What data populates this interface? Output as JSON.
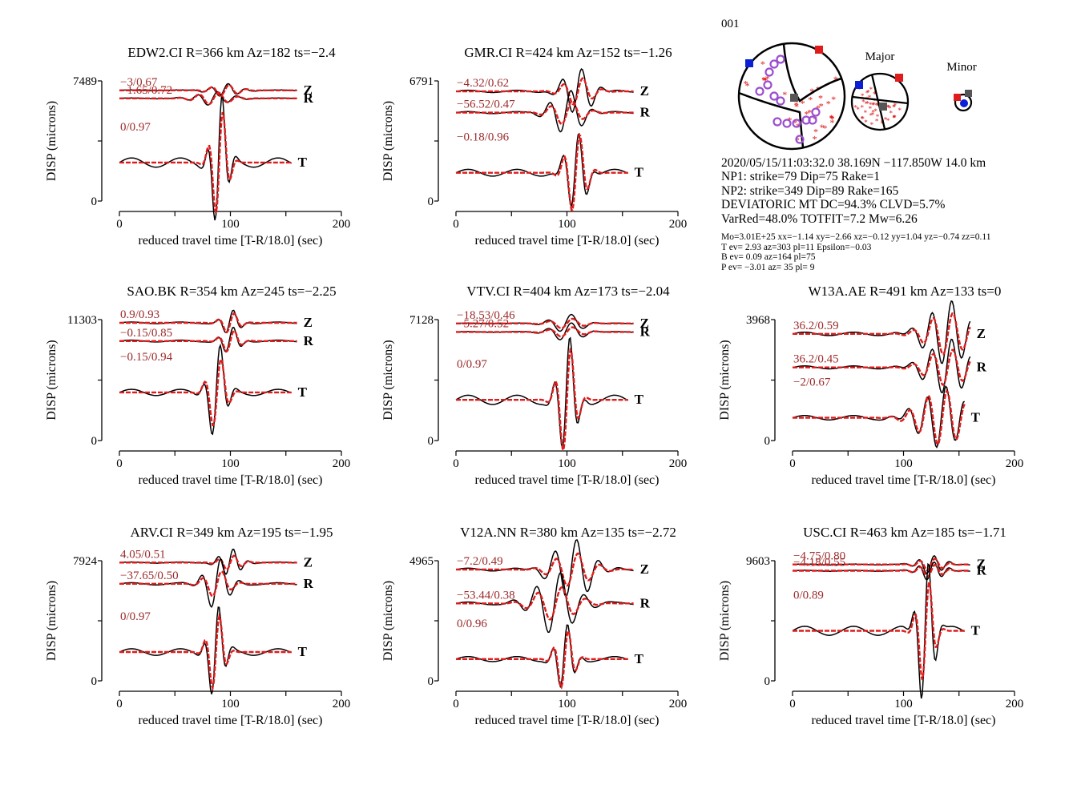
{
  "event_id": "001",
  "event_info": {
    "origin": "2020/05/15/11:03:32.0 38.169N −117.850W 14.0 km",
    "np1": "NP1: strike=79 Dip=75 Rake=1",
    "np2": "NP2: strike=349 Dip=89 Rake=165",
    "deviatoric": "DEVIATORIC MT DC=94.3% CLVD=5.7%",
    "varred": "VarRed=48.0% TOTFIT=7.2 Mw=6.26",
    "mo": "Mo=3.01E+25 xx=−1.14 xy=−2.66 xz=−0.12 yy=1.04 yz=−0.74 zz=0.11",
    "tev": "T ev=  2.93 az=303 pl=11 Epsilon=−0.03",
    "bev": "B ev=  0.09 az=164 pl=75",
    "pev": "P ev= −3.01 az= 35 pl= 9"
  },
  "focal_labels": {
    "major": "Major",
    "minor": "Minor"
  },
  "colors": {
    "observed": "#000000",
    "synthetic": "#e01b1b",
    "label": "#9c2a2a",
    "pick": "#9b4fd0"
  },
  "chart_data": [
    {
      "type": "line",
      "title": "EDW2.CI R=366 km Az=182 ts=−2.4",
      "xlabel": "reduced travel time [T-R/18.0] (sec)",
      "ylabel": "DISP (microns)",
      "xlim": [
        0,
        200
      ],
      "xticks": [
        "0",
        "100",
        "200"
      ],
      "ylim": [
        0,
        7489
      ],
      "ytick_labels": [
        "0",
        "7489"
      ],
      "series": [
        {
          "name": "Z",
          "baseline": 6900,
          "label": "−3/0.67",
          "amp": 350,
          "center": 95,
          "width": 16,
          "period": 16,
          "obs_ratio": 1.15
        },
        {
          "name": "R",
          "baseline": 6400,
          "label": "−1.65/0.72",
          "amp": 380,
          "center": 85,
          "width": 20,
          "period": 18,
          "obs_ratio": 1.1
        },
        {
          "name": "T",
          "baseline": 2400,
          "label": "0/0.97",
          "amp": 3600,
          "center": 90,
          "width": 9,
          "period": 14,
          "obs_ratio": 1.2
        }
      ]
    },
    {
      "type": "line",
      "title": "GMR.CI R=424 km Az=152 ts=−1.26",
      "xlabel": "reduced travel time [T-R/18.0] (sec)",
      "ylabel": "DISP (microns)",
      "xlim": [
        0,
        200
      ],
      "xticks": [
        "0",
        "100",
        "200"
      ],
      "ylim": [
        0,
        6791
      ],
      "ytick_labels": [
        "0",
        "6791"
      ],
      "series": [
        {
          "name": "Z",
          "baseline": 6200,
          "label": "−4.32/0.62",
          "amp": 800,
          "center": 110,
          "width": 16,
          "period": 18,
          "obs_ratio": 1.7
        },
        {
          "name": "R",
          "baseline": 5000,
          "label": "−56.52/0.47",
          "amp": 700,
          "center": 100,
          "width": 18,
          "period": 20,
          "obs_ratio": 1.8
        },
        {
          "name": "T",
          "baseline": 1600,
          "label": "−0.18/0.96",
          "amp": 2400,
          "center": 108,
          "width": 11,
          "period": 15,
          "obs_ratio": 1.0
        }
      ]
    },
    {
      "type": "line",
      "title": "SAO.BK R=354 km Az=245 ts=−2.25",
      "xlabel": "reduced travel time [T-R/18.0] (sec)",
      "ylabel": "DISP (microns)",
      "xlim": [
        0,
        200
      ],
      "xticks": [
        "0",
        "100",
        "200"
      ],
      "ylim": [
        0,
        11303
      ],
      "ytick_labels": [
        "0",
        "11303"
      ],
      "series": [
        {
          "name": "Z",
          "baseline": 11000,
          "label": "0.9/0.93",
          "amp": 1000,
          "center": 100,
          "width": 10,
          "period": 15,
          "obs_ratio": 1.2
        },
        {
          "name": "R",
          "baseline": 9300,
          "label": "−0.15/0.85",
          "amp": 1100,
          "center": 100,
          "width": 10,
          "period": 15,
          "obs_ratio": 1.2
        },
        {
          "name": "T",
          "baseline": 4500,
          "label": "−0.15/0.94",
          "amp": 3600,
          "center": 88,
          "width": 10,
          "period": 16,
          "obs_ratio": 1.3
        }
      ]
    },
    {
      "type": "line",
      "title": "VTV.CI R=404 km Az=173 ts=−2.04",
      "xlabel": "reduced travel time [T-R/18.0] (sec)",
      "ylabel": "DISP (microns)",
      "xlim": [
        0,
        200
      ],
      "xticks": [
        "0",
        "100",
        "200"
      ],
      "ylim": [
        0,
        7128
      ],
      "ytick_labels": [
        "0",
        "7128"
      ],
      "series": [
        {
          "name": "Z",
          "baseline": 6900,
          "label": "−18.53/0.46",
          "amp": 300,
          "center": 100,
          "width": 18,
          "period": 22,
          "obs_ratio": 1.8
        },
        {
          "name": "R",
          "baseline": 6400,
          "label": "−5.27/0.52",
          "amp": 300,
          "center": 100,
          "width": 18,
          "period": 22,
          "obs_ratio": 1.8
        },
        {
          "name": "T",
          "baseline": 2400,
          "label": "0/0.97",
          "amp": 3400,
          "center": 100,
          "width": 10,
          "period": 15,
          "obs_ratio": 1.1
        }
      ]
    },
    {
      "type": "line",
      "title": "W13A.AE R=491 km Az=133 ts=0",
      "xlabel": "reduced travel time [T-R/18.0] (sec)",
      "ylabel": "DISP (microns)",
      "xlim": [
        0,
        200
      ],
      "xticks": [
        "0",
        "100",
        "200"
      ],
      "ylim": [
        0,
        3968
      ],
      "ytick_labels": [
        "0",
        "3968"
      ],
      "series": [
        {
          "name": "Z",
          "baseline": 3500,
          "label": "36.2/0.59",
          "amp": 700,
          "center": 140,
          "width": 24,
          "period": 18,
          "obs_ratio": 1.5
        },
        {
          "name": "R",
          "baseline": 2400,
          "label": "36.2/0.45",
          "amp": 600,
          "center": 140,
          "width": 24,
          "period": 18,
          "obs_ratio": 1.5
        },
        {
          "name": "T",
          "baseline": 750,
          "label": "−2/0.67",
          "amp": 900,
          "center": 135,
          "width": 26,
          "period": 17,
          "obs_ratio": 1.1
        }
      ]
    },
    {
      "type": "line",
      "title": "ARV.CI R=349 km Az=195 ts=−1.95",
      "xlabel": "reduced travel time [T-R/18.0] (sec)",
      "ylabel": "DISP (microns)",
      "xlim": [
        0,
        200
      ],
      "xticks": [
        "0",
        "100",
        "200"
      ],
      "ylim": [
        0,
        7924
      ],
      "ytick_labels": [
        "0",
        "7924"
      ],
      "series": [
        {
          "name": "Z",
          "baseline": 7800,
          "label": "4.05/0.51",
          "amp": 500,
          "center": 100,
          "width": 12,
          "period": 14,
          "obs_ratio": 1.8
        },
        {
          "name": "R",
          "baseline": 6400,
          "label": "−37.65/0.50",
          "amp": 900,
          "center": 88,
          "width": 14,
          "period": 18,
          "obs_ratio": 1.9
        },
        {
          "name": "T",
          "baseline": 1900,
          "label": "0/0.97",
          "amp": 2700,
          "center": 87,
          "width": 9,
          "period": 14,
          "obs_ratio": 1.2
        }
      ]
    },
    {
      "type": "line",
      "title": "V12A.NN R=380 km Az=135 ts=−2.72",
      "xlabel": "reduced travel time [T-R/18.0] (sec)",
      "ylabel": "DISP (microns)",
      "xlim": [
        0,
        200
      ],
      "xticks": [
        "0",
        "100",
        "200"
      ],
      "ylim": [
        0,
        4965
      ],
      "ytick_labels": [
        "0",
        "4965"
      ],
      "series": [
        {
          "name": "Z",
          "baseline": 4600,
          "label": "−7.2/0.49",
          "amp": 700,
          "center": 105,
          "width": 22,
          "period": 20,
          "obs_ratio": 1.8
        },
        {
          "name": "R",
          "baseline": 3200,
          "label": "−53.44/0.38",
          "amp": 700,
          "center": 90,
          "width": 24,
          "period": 22,
          "obs_ratio": 1.8
        },
        {
          "name": "T",
          "baseline": 900,
          "label": "0/0.96",
          "amp": 1300,
          "center": 98,
          "width": 10,
          "period": 14,
          "obs_ratio": 1.1
        }
      ]
    },
    {
      "type": "line",
      "title": "USC.CI R=463 km Az=185 ts=−1.71",
      "xlabel": "reduced travel time [T-R/18.0] (sec)",
      "ylabel": "DISP (microns)",
      "xlim": [
        0,
        200
      ],
      "xticks": [
        "0",
        "100",
        "200"
      ],
      "ylim": [
        0,
        9603
      ],
      "ytick_labels": [
        "0",
        "9603"
      ],
      "series": [
        {
          "name": "Z",
          "baseline": 9300,
          "label": "−4.75/0.80",
          "amp": 500,
          "center": 125,
          "width": 14,
          "period": 14,
          "obs_ratio": 1.5
        },
        {
          "name": "R",
          "baseline": 8800,
          "label": "−4.18/0.55",
          "amp": 500,
          "center": 125,
          "width": 14,
          "period": 14,
          "obs_ratio": 1.5
        },
        {
          "name": "T",
          "baseline": 4000,
          "label": "0/0.89",
          "amp": 4500,
          "center": 120,
          "width": 9,
          "period": 14,
          "obs_ratio": 1.4
        }
      ]
    }
  ]
}
